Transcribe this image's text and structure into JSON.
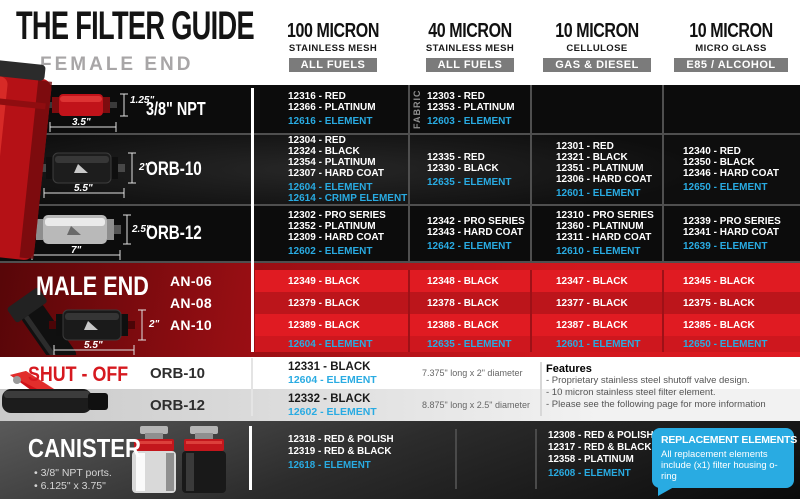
{
  "header": {
    "title": "THE FILTER GUIDE",
    "female_end_label": "FEMALE END",
    "columns": [
      {
        "micron": "100 MICRON",
        "media": "STAINLESS MESH",
        "badge": "ALL FUELS"
      },
      {
        "micron": "40 MICRON",
        "media": "STAINLESS MESH",
        "badge": "ALL FUELS"
      },
      {
        "micron": "10 MICRON",
        "media": "CELLULOSE",
        "badge": "GAS & DIESEL"
      },
      {
        "micron": "10 MICRON",
        "media": "MICRO GLASS",
        "badge": "E85 / ALCOHOL"
      }
    ]
  },
  "female_rows": [
    {
      "connector": "3/8\" NPT",
      "dims": {
        "width": "3.5\"",
        "height": "1.25\""
      },
      "cells": [
        {
          "parts": [
            "12316 - RED",
            "12366 - PLATINUM"
          ],
          "elements": [
            "12616 - ELEMENT"
          ]
        },
        {
          "note": "FABRIC",
          "parts": [
            "12303 - RED",
            "12353 - PLATINUM"
          ],
          "elements": [
            "12603 - ELEMENT"
          ]
        },
        {
          "parts": [],
          "elements": []
        },
        {
          "parts": [],
          "elements": []
        }
      ]
    },
    {
      "connector": "ORB-10",
      "dims": {
        "width": "5.5\"",
        "height": "2\""
      },
      "cells": [
        {
          "parts": [
            "12304 - RED",
            "12324 - BLACK",
            "12354 - PLATINUM",
            "12307 - HARD COAT"
          ],
          "elements": [
            "12604 - ELEMENT",
            "12614 - CRIMP ELEMENT"
          ]
        },
        {
          "parts": [
            "12335 - RED",
            "12330 - BLACK"
          ],
          "elements": [
            "12635 - ELEMENT"
          ]
        },
        {
          "parts": [
            "12301 - RED",
            "12321 - BLACK",
            "12351 - PLATINUM",
            "12306 - HARD COAT"
          ],
          "elements": [
            "12601 - ELEMENT"
          ]
        },
        {
          "parts": [
            "12340 - RED",
            "12350 - BLACK",
            "12346 - HARD COAT"
          ],
          "elements": [
            "12650 - ELEMENT"
          ]
        }
      ]
    },
    {
      "connector": "ORB-12",
      "dims": {
        "width": "7\"",
        "height": "2.5\""
      },
      "cells": [
        {
          "parts": [
            "12302 - PRO SERIES",
            "12352 - PLATINUM",
            "12309 - HARD COAT"
          ],
          "elements": [
            "12602 - ELEMENT"
          ]
        },
        {
          "parts": [
            "12342 - PRO SERIES",
            "12343 - HARD COAT"
          ],
          "elements": [
            "12642 - ELEMENT"
          ]
        },
        {
          "parts": [
            "12310 - PRO SERIES",
            "12360 - PLATINUM",
            "12311 - HARD COAT"
          ],
          "elements": [
            "12610 - ELEMENT"
          ]
        },
        {
          "parts": [
            "12339 - PRO SERIES",
            "12341 - HARD COAT"
          ],
          "elements": [
            "12639 - ELEMENT"
          ]
        }
      ]
    }
  ],
  "male_end": {
    "label": "MALE END",
    "dims": {
      "width": "5.5\"",
      "height": "2\""
    },
    "rows": [
      {
        "connector": "AN-06",
        "parts": [
          "12349 - BLACK",
          "12348 - BLACK",
          "12347 - BLACK",
          "12345 - BLACK"
        ]
      },
      {
        "connector": "AN-08",
        "parts": [
          "12379 - BLACK",
          "12378 - BLACK",
          "12377 - BLACK",
          "12375 - BLACK"
        ]
      },
      {
        "connector": "AN-10",
        "parts": [
          "12389 - BLACK",
          "12388 - BLACK",
          "12387 - BLACK",
          "12385 - BLACK"
        ]
      }
    ],
    "elements": [
      "12604 - ELEMENT",
      "12635 - ELEMENT",
      "12601 - ELEMENT",
      "12650 - ELEMENT"
    ]
  },
  "shut_off": {
    "label": "SHUT - OFF",
    "rows": [
      {
        "connector": "ORB-10",
        "part": "12331 - BLACK",
        "element": "12604 - ELEMENT",
        "size": "7.375\" long x 2\" diameter"
      },
      {
        "connector": "ORB-12",
        "part": "12332 - BLACK",
        "element": "12602 - ELEMENT",
        "size": "8.875\" long x 2.5\" diameter"
      }
    ],
    "features": {
      "title": "Features",
      "items": [
        "- Proprietary stainless steel shutoff valve design.",
        "- 10 micron stainless steel filter element.",
        "- Please see the following page for more information"
      ]
    }
  },
  "canister": {
    "label": "CANISTER",
    "bullets": [
      "• 3/8\" NPT ports.",
      "• 6.125\" x 3.75\""
    ],
    "cells": [
      {
        "parts": [
          "12318 - RED & POLISH",
          "12319 - RED & BLACK"
        ],
        "elements": [
          "12618 - ELEMENT"
        ]
      },
      {
        "parts": [
          "12308 - RED & POLISH",
          "12317 - RED & BLACK",
          "12358 - PLATINUM"
        ],
        "elements": [
          "12608 - ELEMENT"
        ]
      }
    ],
    "callout": {
      "title": "REPLACEMENT ELEMENTS",
      "body": "All replacement elements include (x1) filter housing o-ring"
    }
  },
  "colors": {
    "element_blue": "#29ABE2",
    "brand_red": "#D6191F"
  }
}
